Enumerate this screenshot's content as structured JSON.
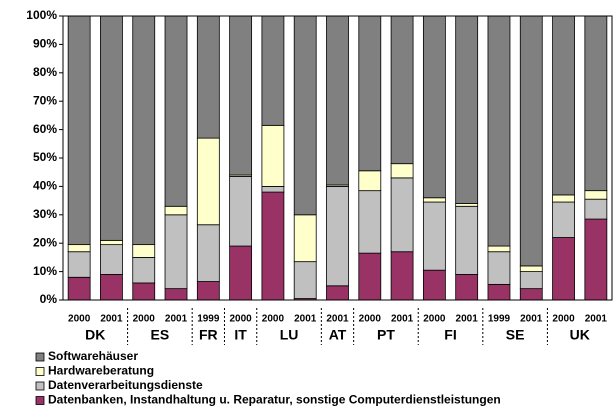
{
  "chart_data": {
    "type": "stacked_bar",
    "categories": [
      "2000",
      "2001",
      "2000",
      "2001",
      "1999",
      "2000",
      "2000",
      "2001",
      "2001",
      "2000",
      "2001",
      "2000",
      "2001",
      "1999",
      "2001",
      "2000",
      "2001"
    ],
    "groups": [
      "DK",
      null,
      "ES",
      null,
      "FR",
      "IT",
      "LU",
      null,
      "AT",
      "PT",
      null,
      "FI",
      null,
      "SE",
      null,
      "UK",
      null
    ],
    "series": [
      {
        "name": "Softwarehäuser",
        "color": "#808080",
        "values": [
          80.5,
          79,
          80.5,
          67,
          43,
          56,
          38.5,
          70,
          59.5,
          54.5,
          52,
          64,
          66,
          81,
          88,
          63,
          61.5
        ]
      },
      {
        "name": "Hardwareberatung",
        "color": "#ffffcc",
        "values": [
          2.5,
          1.5,
          4.5,
          3,
          30.5,
          0.5,
          21.5,
          16.5,
          0.5,
          7,
          5,
          1.5,
          1,
          2,
          2,
          2.5,
          3
        ]
      },
      {
        "name": "Datenverarbeitungsdienste",
        "color": "#c0c0c0",
        "values": [
          9,
          10.5,
          9,
          26,
          20,
          24.5,
          2,
          13,
          35,
          22,
          26,
          24,
          24,
          11.5,
          6,
          12.5,
          7
        ]
      },
      {
        "name": "Datenbanken, Instandhaltung u. Reparatur, sonstige Computerdienstleistungen",
        "color": "#993366",
        "values": [
          8,
          9,
          6,
          4,
          6.5,
          19,
          38,
          0.5,
          5,
          16.5,
          17,
          10.5,
          9,
          5.5,
          4,
          22,
          28.5
        ]
      }
    ],
    "ylim": [
      0,
      100
    ],
    "yticks": [
      {
        "value": 0,
        "label": "0%"
      },
      {
        "value": 10,
        "label": "10%"
      },
      {
        "value": 20,
        "label": "20%"
      },
      {
        "value": 30,
        "label": "30%"
      },
      {
        "value": 40,
        "label": "40%"
      },
      {
        "value": 50,
        "label": "50%"
      },
      {
        "value": 60,
        "label": "60%"
      },
      {
        "value": 70,
        "label": "70%"
      },
      {
        "value": 80,
        "label": "80%"
      },
      {
        "value": 90,
        "label": "90%"
      },
      {
        "value": 100,
        "label": "100%"
      }
    ],
    "legend": "bottom-left"
  }
}
